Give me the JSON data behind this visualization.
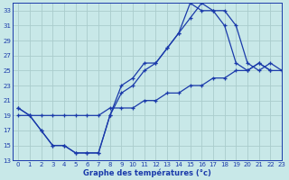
{
  "xlabel": "Graphe des températures (°c)",
  "background_color": "#c8e8e8",
  "grid_color": "#aacccc",
  "line_color": "#1a3aaa",
  "xlim": [
    -0.5,
    23
  ],
  "ylim": [
    13,
    34
  ],
  "yticks": [
    13,
    15,
    17,
    19,
    21,
    23,
    25,
    27,
    29,
    31,
    33
  ],
  "xticks": [
    0,
    1,
    2,
    3,
    4,
    5,
    6,
    7,
    8,
    9,
    10,
    11,
    12,
    13,
    14,
    15,
    16,
    17,
    18,
    19,
    20,
    21,
    22,
    23
  ],
  "series": [
    [
      20,
      19,
      17,
      15,
      15,
      14,
      14,
      14,
      19,
      23,
      24,
      26,
      26,
      28,
      30,
      34,
      33,
      33,
      31,
      26,
      25,
      26,
      25,
      null
    ],
    [
      20,
      19,
      17,
      15,
      15,
      14,
      14,
      14,
      19,
      22,
      23,
      25,
      26,
      28,
      30,
      32,
      34,
      33,
      33,
      31,
      26,
      25,
      26,
      25
    ],
    [
      19,
      19,
      19,
      19,
      19,
      19,
      19,
      19,
      20,
      20,
      20,
      21,
      21,
      22,
      22,
      23,
      23,
      24,
      24,
      25,
      25,
      26,
      25,
      25
    ]
  ]
}
